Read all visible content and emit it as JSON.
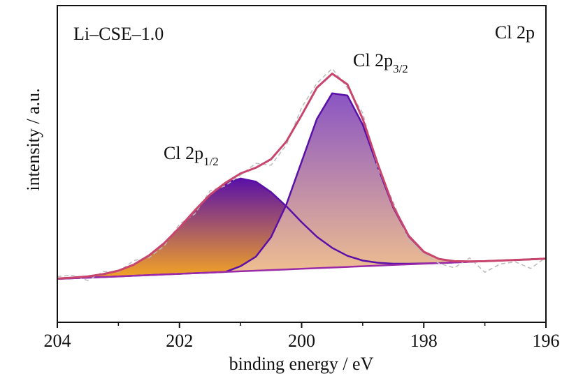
{
  "chart_data": {
    "type": "line",
    "annotations": [
      {
        "text": "Li–CSE–1.0"
      },
      {
        "text": "Cl 2p"
      },
      {
        "text": "Cl 2p",
        "sub": "3/2"
      },
      {
        "text": "Cl 2p",
        "sub": "1/2"
      }
    ],
    "xlabel": "binding energy / eV",
    "ylabel": "intensity / a.u.",
    "xlim": [
      204,
      196
    ],
    "ylim": [
      0,
      100
    ],
    "xticks": [
      204,
      202,
      200,
      198,
      196
    ],
    "xminor": [
      203,
      201,
      199,
      197
    ],
    "x": [
      204,
      203.75,
      203.5,
      203.25,
      203,
      202.75,
      202.5,
      202.25,
      202,
      201.75,
      201.5,
      201.25,
      201,
      200.75,
      200.5,
      200.25,
      200,
      199.75,
      199.5,
      199.25,
      199,
      198.75,
      198.5,
      198.25,
      198,
      197.75,
      197.5,
      197.25,
      197,
      196.75,
      196.5,
      196.25,
      196
    ],
    "series": [
      {
        "color": "#5a10a8",
        "gradient": [
          "#5a10a8",
          "#f5a623"
        ],
        "fill_to": 2,
        "values": [
          13.8,
          14.1,
          14.5,
          15.2,
          16.3,
          18.2,
          21.1,
          25.0,
          29.9,
          35.3,
          40.3,
          44.0,
          45.4,
          44.4,
          41.1,
          36.6,
          31.6,
          27.0,
          23.5,
          21.0,
          19.5,
          18.8,
          18.5,
          18.5,
          18.6,
          18.7,
          18.9,
          19.1,
          19.3,
          19.5,
          19.7,
          19.9,
          20.1
        ]
      },
      {
        "color": "#5a10a8",
        "gradient": [
          "#8a55c4",
          "#f2c28e"
        ],
        "fill_to": 2,
        "values": [
          13.7,
          13.9,
          14.1,
          14.3,
          14.5,
          14.7,
          14.9,
          15.1,
          15.3,
          15.5,
          15.7,
          15.9,
          17.7,
          20.7,
          26.9,
          37.2,
          50.7,
          64.2,
          72.3,
          71.6,
          62.4,
          48.9,
          36.2,
          27.2,
          22.2,
          20.0,
          19.3,
          19.2,
          19.3,
          19.5,
          19.7,
          19.9,
          20.1
        ]
      },
      {
        "color": "#9a2aa8",
        "values": [
          13.7,
          13.9,
          14.1,
          14.3,
          14.5,
          14.7,
          14.9,
          15.1,
          15.3,
          15.5,
          15.7,
          15.9,
          16.1,
          16.3,
          16.5,
          16.7,
          16.9,
          17.1,
          17.3,
          17.5,
          17.7,
          17.9,
          18.1,
          18.3,
          18.5,
          18.7,
          18.9,
          19.1,
          19.3,
          19.5,
          19.7,
          19.9,
          20.1
        ]
      },
      {
        "color": "#bbbbbb",
        "dashed": true,
        "values": [
          14.5,
          14.8,
          13.2,
          16.0,
          15.9,
          19.5,
          20.4,
          24.1,
          31.0,
          34.2,
          41.5,
          43.1,
          46.5,
          50.2,
          49.6,
          56.0,
          67.8,
          75.5,
          80.1,
          74.0,
          66.1,
          48.5,
          38.0,
          25.9,
          21.5,
          18.6,
          17.2,
          20.3,
          15.8,
          18.4,
          19.1,
          17.0,
          20.5
        ]
      },
      {
        "color": "#c8466e",
        "values": [
          13.8,
          14.1,
          14.5,
          15.2,
          16.3,
          18.2,
          21.1,
          25.0,
          29.9,
          35.3,
          40.3,
          44.0,
          47.0,
          48.8,
          51.5,
          57.1,
          65.4,
          74.1,
          78.5,
          75.1,
          64.2,
          49.8,
          36.6,
          27.4,
          22.3,
          20.0,
          19.3,
          19.2,
          19.3,
          19.5,
          19.7,
          19.9,
          20.1
        ]
      }
    ]
  }
}
